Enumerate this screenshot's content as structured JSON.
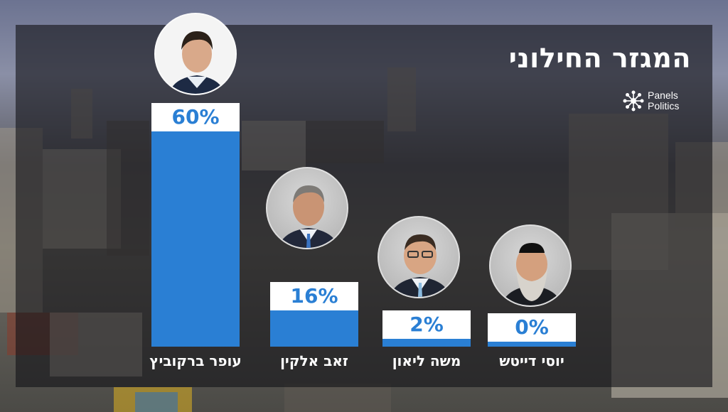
{
  "title": "המגזר החילוני",
  "logo": {
    "line1": "Panels",
    "line2": "Politics"
  },
  "colors": {
    "bar": "#2a7fd4",
    "label_bg": "#ffffff",
    "label_text": "#2a7fd4",
    "panel": "#141418"
  },
  "chart_data": {
    "type": "bar",
    "title": "המגזר החילוני",
    "categories": [
      "עופר ברקוביץ",
      "זאב אלקין",
      "משה ליאון",
      "יוסי דייטש"
    ],
    "values": [
      60,
      16,
      2,
      0
    ],
    "value_labels": [
      "60%",
      "16%",
      "2%",
      "0%"
    ],
    "ylim": [
      0,
      60
    ],
    "grid": false
  }
}
